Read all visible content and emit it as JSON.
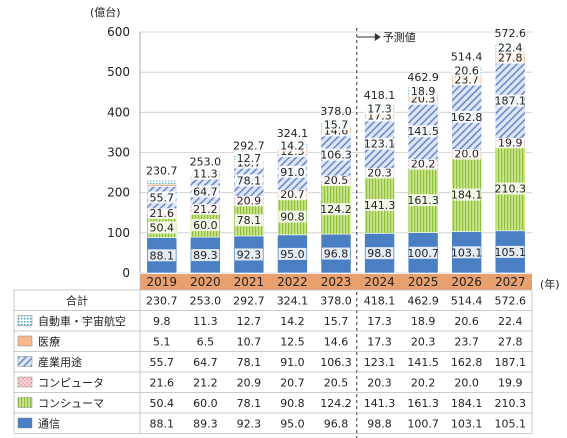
{
  "chart_data": {
    "type": "bar",
    "stacked": true,
    "unit_label": "(億台)",
    "x_unit_label": "(年)",
    "forecast_label": "予測値",
    "forecast_from": "2024",
    "categories": [
      "2019",
      "2020",
      "2021",
      "2022",
      "2023",
      "2024",
      "2025",
      "2026",
      "2027"
    ],
    "ylim": [
      0,
      600
    ],
    "yticks": [
      0,
      100,
      200,
      300,
      400,
      500,
      600
    ],
    "grid": true,
    "series": [
      {
        "name": "通信",
        "color": "#4a7fc4",
        "pattern": "solid",
        "values": [
          88.1,
          89.3,
          92.3,
          95.0,
          96.8,
          98.8,
          100.7,
          103.1,
          105.1
        ]
      },
      {
        "name": "コンシューマ",
        "color": "#b9db6e",
        "pattern": "vstripe",
        "values": [
          50.4,
          60.0,
          78.1,
          90.8,
          124.2,
          141.3,
          161.3,
          184.1,
          210.3
        ]
      },
      {
        "name": "コンピュータ",
        "color": "#f5c2c7",
        "pattern": "dots",
        "values": [
          21.6,
          21.2,
          20.9,
          20.7,
          20.5,
          20.3,
          20.2,
          20.0,
          19.9
        ]
      },
      {
        "name": "産業用途",
        "color": "#9bb1df",
        "pattern": "diag",
        "values": [
          55.7,
          64.7,
          78.1,
          91.0,
          106.3,
          123.1,
          141.5,
          162.8,
          187.1
        ]
      },
      {
        "name": "医療",
        "color": "#f7b98a",
        "pattern": "solid",
        "values": [
          5.1,
          6.5,
          10.7,
          12.5,
          14.6,
          17.3,
          20.3,
          23.7,
          27.8
        ]
      },
      {
        "name": "自動車・宇宙航空",
        "color": "#8fd3e6",
        "pattern": "grid",
        "values": [
          9.8,
          11.3,
          12.7,
          14.2,
          15.7,
          17.3,
          18.9,
          20.6,
          22.4
        ]
      }
    ],
    "totals": [
      230.7,
      253.0,
      292.7,
      324.1,
      378.0,
      418.1,
      462.9,
      514.4,
      572.6
    ],
    "table": {
      "total_label": "合計",
      "row_order": [
        "自動車・宇宙航空",
        "医療",
        "産業用途",
        "コンピュータ",
        "コンシューマ",
        "通信"
      ],
      "values": {
        "自動車・宇宙航空": [
          "9.8",
          "11.3",
          "12.7",
          "14.2",
          "15.7",
          "17.3",
          "18.9",
          "20.6",
          "22.4"
        ],
        "医療": [
          "5.1",
          "6.5",
          "10.7",
          "12.5",
          "14.6",
          "17.3",
          "20.3",
          "23.7",
          "27.8"
        ],
        "産業用途": [
          "55.7",
          "64.7",
          "78.1",
          "91.0",
          "106.3",
          "123.1",
          "141.5",
          "162.8",
          "187.1"
        ],
        "コンピュータ": [
          "21.6",
          "21.2",
          "20.9",
          "20.7",
          "20.5",
          "20.3",
          "20.2",
          "20.0",
          "19.9"
        ],
        "コンシューマ": [
          "50.4",
          "60.0",
          "78.1",
          "90.8",
          "124.2",
          "141.3",
          "161.3",
          "184.1",
          "210.3"
        ],
        "通信": [
          "88.1",
          "89.3",
          "92.3",
          "95.0",
          "96.8",
          "98.8",
          "100.7",
          "103.1",
          "105.1"
        ]
      },
      "totals": [
        "230.7",
        "253.0",
        "292.7",
        "324.1",
        "378.0",
        "418.1",
        "462.9",
        "514.4",
        "572.6"
      ]
    }
  }
}
